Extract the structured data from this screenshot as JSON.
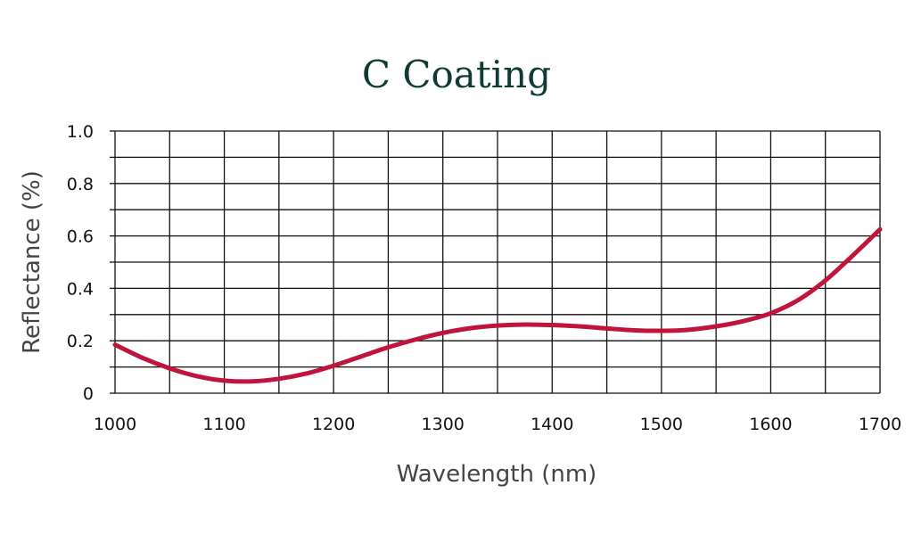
{
  "chart_data": {
    "type": "line",
    "title": "C Coating",
    "xlabel": "Wavelength (nm)",
    "ylabel": "Reflectance (%)",
    "xlim": [
      1000,
      1700
    ],
    "ylim": [
      0,
      1.0
    ],
    "x_ticks": [
      "1000",
      "1100",
      "1200",
      "1300",
      "1400",
      "1500",
      "1600",
      "1700"
    ],
    "y_ticks": [
      "0",
      "0.2",
      "0.4",
      "0.6",
      "0.8",
      "1.0"
    ],
    "grid": true,
    "series": [
      {
        "color": "#c0143c",
        "x": [
          1000,
          1025,
          1050,
          1075,
          1100,
          1125,
          1150,
          1175,
          1200,
          1225,
          1250,
          1275,
          1300,
          1325,
          1350,
          1375,
          1400,
          1425,
          1450,
          1475,
          1500,
          1525,
          1550,
          1575,
          1600,
          1625,
          1650,
          1675,
          1700
        ],
        "y": [
          0.185,
          0.135,
          0.095,
          0.065,
          0.048,
          0.045,
          0.055,
          0.075,
          0.105,
          0.14,
          0.175,
          0.205,
          0.23,
          0.248,
          0.258,
          0.262,
          0.26,
          0.255,
          0.247,
          0.24,
          0.238,
          0.242,
          0.255,
          0.275,
          0.305,
          0.355,
          0.43,
          0.525,
          0.625
        ]
      }
    ]
  }
}
